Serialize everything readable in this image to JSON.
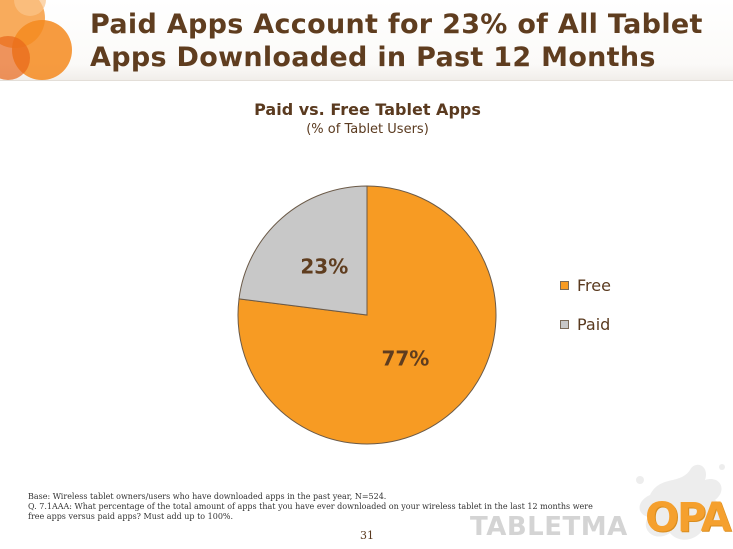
{
  "slide": {
    "title_lines": [
      "Paid Apps Account for 23% of All Tablet",
      "Apps Downloaded in Past 12 Months"
    ],
    "page_number": "31"
  },
  "chart_data": {
    "type": "pie",
    "title": "Paid vs. Free Tablet Apps",
    "subtitle": "(% of Tablet Users)",
    "categories": [
      "Free",
      "Paid"
    ],
    "values": [
      77,
      23
    ],
    "labels": [
      "77%",
      "23%"
    ],
    "colors": [
      "#f79b23",
      "#c8c8c8"
    ],
    "legend_position": "right"
  },
  "footnotes": [
    "Base:   Wireless tablet owners/users who have downloaded apps in the past year, N=524.",
    "Q. 7.1AAA:   What percentage of the total amount of apps that you have ever downloaded on your wireless tablet in the last 12 months were",
    "free apps versus paid apps?  Must add up to 100%."
  ],
  "branding": {
    "watermark_text": "TABLETMA",
    "logo_text": "OPA",
    "accent_color": "#f5a02e",
    "decor_color": "#f7941d"
  }
}
